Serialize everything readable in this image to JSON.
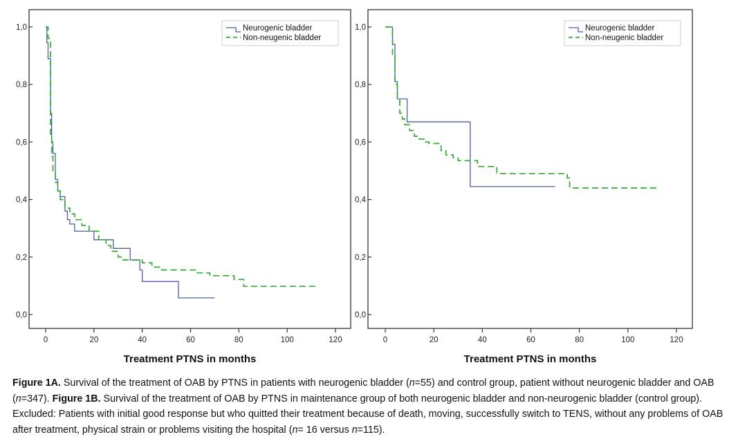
{
  "chart_data": [
    {
      "type": "line",
      "step": true,
      "xlabel": "Treatment PTNS in months",
      "ylabel": "",
      "xlim": [
        0,
        120
      ],
      "ylim": [
        0,
        1
      ],
      "x_ticks": [
        "0",
        "20",
        "40",
        "60",
        "80",
        "100",
        "120"
      ],
      "y_ticks": [
        "0,0",
        "0,2",
        "0,4",
        "0,6",
        "0,8",
        "1,0"
      ],
      "legend_position": "top-right",
      "grid": false,
      "series": [
        {
          "name": "Neurogenic bladder",
          "color": "#4a5fa3",
          "dash": "solid",
          "points": [
            [
              0,
              1.0
            ],
            [
              0.5,
              0.945
            ],
            [
              1,
              0.89
            ],
            [
              2,
              0.7
            ],
            [
              2.5,
              0.6
            ],
            [
              3,
              0.56
            ],
            [
              4,
              0.47
            ],
            [
              5,
              0.43
            ],
            [
              6,
              0.41
            ],
            [
              8,
              0.36
            ],
            [
              9,
              0.33
            ],
            [
              10,
              0.315
            ],
            [
              12,
              0.29
            ],
            [
              15,
              0.29
            ],
            [
              20,
              0.26
            ],
            [
              28,
              0.23
            ],
            [
              35,
              0.19
            ],
            [
              39,
              0.155
            ],
            [
              40,
              0.115
            ],
            [
              55,
              0.058
            ],
            [
              70,
              0.058
            ]
          ]
        },
        {
          "name": "Non-neugenic bladder",
          "color": "#33aa33",
          "dash": "dashed",
          "points": [
            [
              0,
              1.0
            ],
            [
              1,
              0.96
            ],
            [
              2,
              0.62
            ],
            [
              2.5,
              0.55
            ],
            [
              3,
              0.5
            ],
            [
              4,
              0.46
            ],
            [
              5,
              0.43
            ],
            [
              6,
              0.4
            ],
            [
              8,
              0.37
            ],
            [
              10,
              0.35
            ],
            [
              12,
              0.33
            ],
            [
              15,
              0.31
            ],
            [
              18,
              0.29
            ],
            [
              22,
              0.26
            ],
            [
              25,
              0.24
            ],
            [
              27,
              0.22
            ],
            [
              30,
              0.2
            ],
            [
              32,
              0.19
            ],
            [
              40,
              0.18
            ],
            [
              44,
              0.165
            ],
            [
              48,
              0.155
            ],
            [
              62,
              0.145
            ],
            [
              68,
              0.135
            ],
            [
              78,
              0.122
            ],
            [
              82,
              0.098
            ],
            [
              112,
              0.098
            ]
          ]
        }
      ]
    },
    {
      "type": "line",
      "step": true,
      "xlabel": "Treatment PTNS in months",
      "ylabel": "",
      "xlim": [
        0,
        120
      ],
      "ylim": [
        0,
        1
      ],
      "x_ticks": [
        "0",
        "20",
        "40",
        "60",
        "80",
        "100",
        "120"
      ],
      "y_ticks": [
        "0,0",
        "0,2",
        "0,4",
        "0,6",
        "0,8",
        "1,0"
      ],
      "legend_position": "top-right",
      "grid": false,
      "series": [
        {
          "name": "Neurogenic bladder",
          "color": "#4a5fa3",
          "dash": "solid",
          "points": [
            [
              0,
              1.0
            ],
            [
              3,
              0.94
            ],
            [
              4,
              0.81
            ],
            [
              5,
              0.75
            ],
            [
              9,
              0.67
            ],
            [
              35,
              0.445
            ],
            [
              70,
              0.445
            ]
          ]
        },
        {
          "name": "Non-neugenic bladder",
          "color": "#33aa33",
          "dash": "dashed",
          "points": [
            [
              0,
              1.0
            ],
            [
              3,
              0.9
            ],
            [
              4,
              0.8
            ],
            [
              5,
              0.75
            ],
            [
              6,
              0.7
            ],
            [
              7,
              0.68
            ],
            [
              8,
              0.66
            ],
            [
              10,
              0.64
            ],
            [
              12,
              0.62
            ],
            [
              14,
              0.61
            ],
            [
              16,
              0.6
            ],
            [
              18,
              0.595
            ],
            [
              23,
              0.57
            ],
            [
              25,
              0.555
            ],
            [
              28,
              0.545
            ],
            [
              30,
              0.535
            ],
            [
              38,
              0.515
            ],
            [
              45,
              0.51
            ],
            [
              46,
              0.49
            ],
            [
              75,
              0.475
            ],
            [
              76,
              0.44
            ],
            [
              112,
              0.44
            ]
          ]
        }
      ]
    }
  ],
  "caption": {
    "fig1a_label": "Figure 1A.",
    "t1": " Survival of the treatment of OAB by PTNS in patients with neurogenic bladder (",
    "n_italic_1": "n",
    "t2": "=55) and control group, patient without neurogenic bladder and OAB (",
    "n_italic_2": "n",
    "t3": "=347). ",
    "fig1b_label": "Figure 1B.",
    "t4": " Survival of the treatment of OAB by PTNS in maintenance group of both neurogenic bladder and non-neurogenic bladder (control group). Excluded: Patients with initial good response but who quitted their treatment because of death, moving, successfully switch to TENS, without any problems of OAB after treatment, physical strain or problems visiting the hospital (",
    "n_italic_3": "n",
    "t5": "= 16 versus ",
    "n_italic_4": "n",
    "t6": "=115)."
  }
}
